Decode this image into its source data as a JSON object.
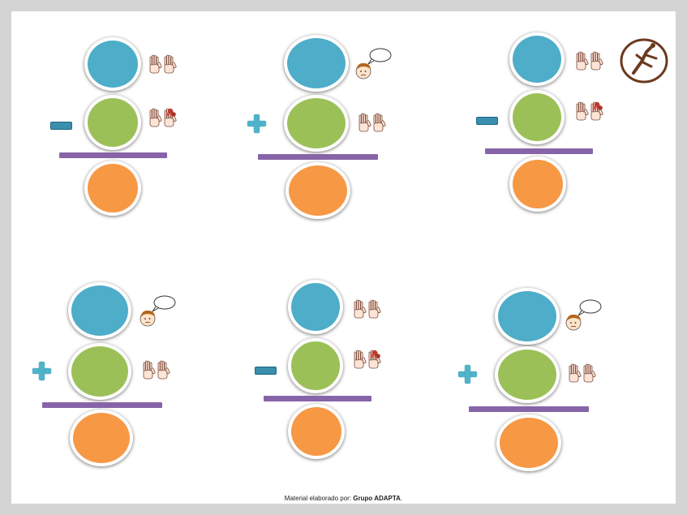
{
  "colors": {
    "top_circle": "#4eadc8",
    "middle_circle": "#9cc058",
    "bottom_circle": "#f79845",
    "divider": "#8764a8",
    "minus_sign": "#3a8fad",
    "plus_sign": "#4fb3c9",
    "logo": "#6b3a1f"
  },
  "logo": {
    "icon": "runner-logo-icon"
  },
  "problems": [
    {
      "operator": "minus",
      "top_icon": "open-hands-icon",
      "middle_icon": "hands-with-flowers-icon"
    },
    {
      "operator": "plus",
      "top_icon": "thinking-child-icon",
      "middle_icon": "open-hands-icon"
    },
    {
      "operator": "minus",
      "top_icon": "open-hands-icon",
      "middle_icon": "hands-with-flowers-icon"
    },
    {
      "operator": "plus",
      "top_icon": "thinking-child-icon",
      "middle_icon": "open-hands-icon"
    },
    {
      "operator": "minus",
      "top_icon": "open-hands-icon",
      "middle_icon": "hands-with-flowers-icon"
    },
    {
      "operator": "plus",
      "top_icon": "thinking-child-icon",
      "middle_icon": "open-hands-icon"
    }
  ],
  "footer": {
    "prefix": "Material elaborado por: ",
    "author": "Grupo ADAPTA",
    "suffix": "."
  }
}
